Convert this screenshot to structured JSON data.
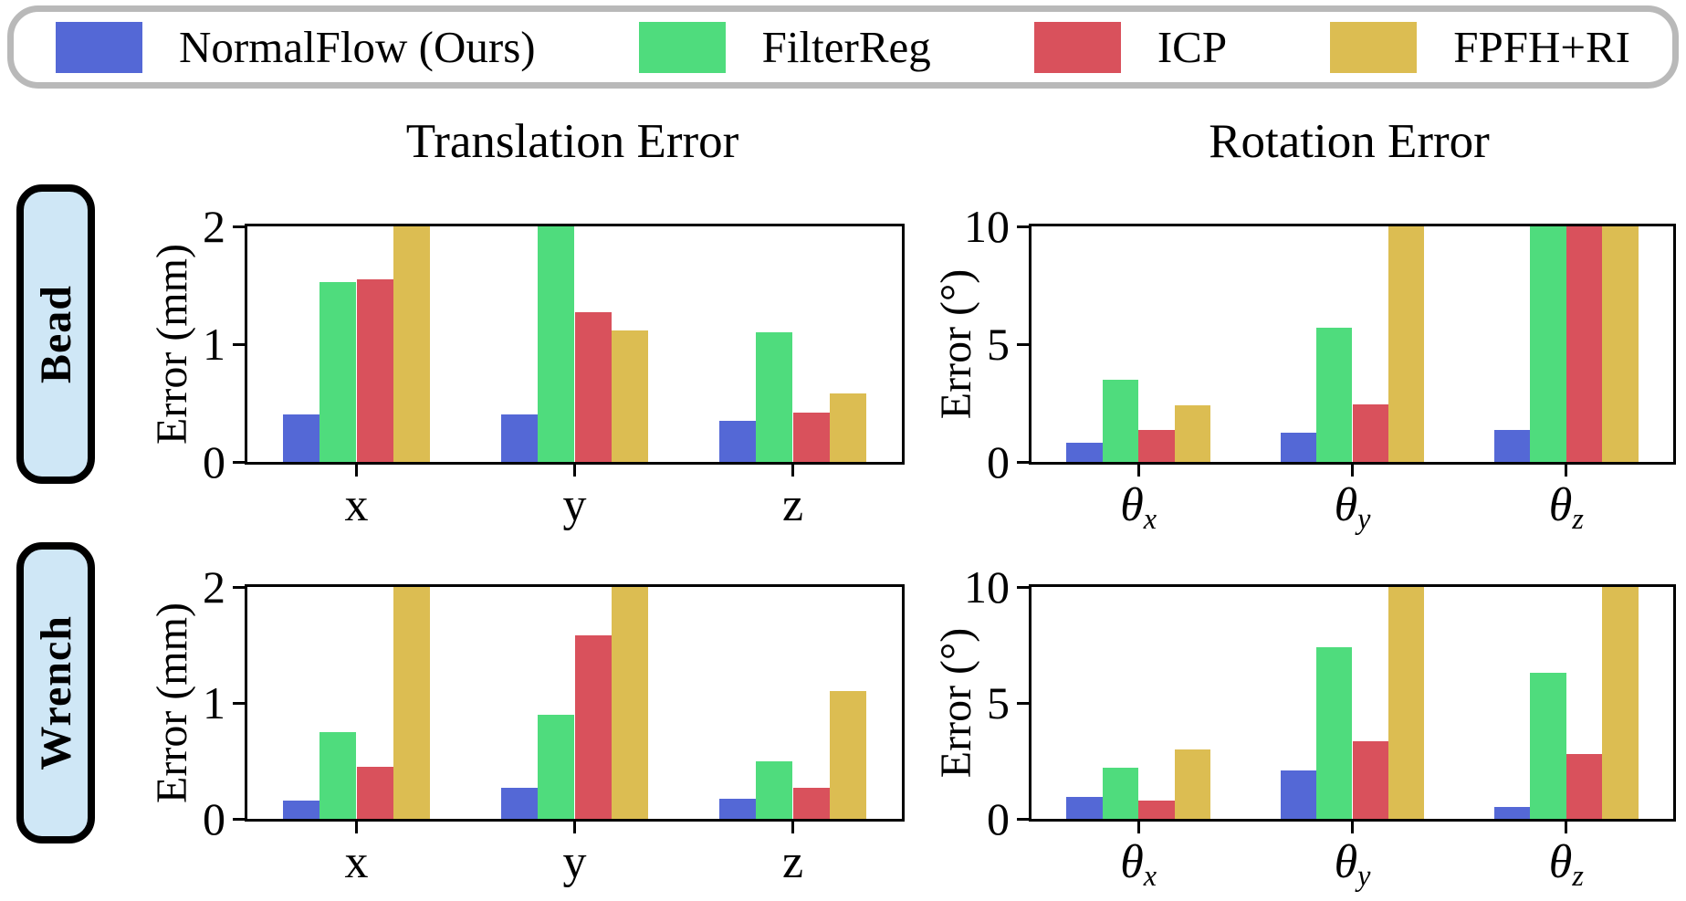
{
  "legend": {
    "items": [
      {
        "label": "NormalFlow (Ours)",
        "color": "#5468d6"
      },
      {
        "label": "FilterReg",
        "color": "#4fdc7d"
      },
      {
        "label": "ICP",
        "color": "#d9515c"
      },
      {
        "label": "FPFH+RI",
        "color": "#dcbd52"
      }
    ],
    "border_color": "#b9b9b9"
  },
  "column_titles": [
    "Translation Error",
    "Rotation Error"
  ],
  "rows": [
    {
      "label": "Bead",
      "background": "#cfe7f6"
    },
    {
      "label": "Wrench",
      "background": "#cfe7f6"
    }
  ],
  "chart_data": [
    {
      "id": "bead-translation",
      "type": "bar",
      "row": "Bead",
      "title": "Translation Error",
      "ylabel": "Error (mm)",
      "ylim": [
        0,
        2
      ],
      "yticks": [
        0,
        1,
        2
      ],
      "categories": [
        "x",
        "y",
        "z"
      ],
      "grid": false,
      "series": [
        {
          "name": "NormalFlow (Ours)",
          "color": "#5468d6",
          "values": [
            0.4,
            0.4,
            0.35
          ],
          "clipped_at_max": [
            false,
            false,
            false
          ]
        },
        {
          "name": "FilterReg",
          "color": "#4fdc7d",
          "values": [
            1.53,
            2.0,
            1.1
          ],
          "clipped_at_max": [
            false,
            true,
            false
          ]
        },
        {
          "name": "ICP",
          "color": "#d9515c",
          "values": [
            1.55,
            1.27,
            0.42
          ],
          "clipped_at_max": [
            false,
            false,
            false
          ]
        },
        {
          "name": "FPFH+RI",
          "color": "#dcbd52",
          "values": [
            2.0,
            1.12,
            0.58
          ],
          "clipped_at_max": [
            true,
            false,
            false
          ]
        }
      ]
    },
    {
      "id": "bead-rotation",
      "type": "bar",
      "row": "Bead",
      "title": "Rotation Error",
      "ylabel": "Error (°)",
      "ylim": [
        0,
        10
      ],
      "yticks": [
        0,
        5,
        10
      ],
      "categories": [
        "θ_x",
        "θ_y",
        "θ_z"
      ],
      "grid": false,
      "series": [
        {
          "name": "NormalFlow (Ours)",
          "color": "#5468d6",
          "values": [
            0.8,
            1.25,
            1.35
          ],
          "clipped_at_max": [
            false,
            false,
            false
          ]
        },
        {
          "name": "FilterReg",
          "color": "#4fdc7d",
          "values": [
            3.5,
            5.7,
            10.0
          ],
          "clipped_at_max": [
            false,
            false,
            true
          ]
        },
        {
          "name": "ICP",
          "color": "#d9515c",
          "values": [
            1.35,
            2.45,
            10.0
          ],
          "clipped_at_max": [
            false,
            false,
            true
          ]
        },
        {
          "name": "FPFH+RI",
          "color": "#dcbd52",
          "values": [
            2.4,
            10.0,
            10.0
          ],
          "clipped_at_max": [
            false,
            true,
            true
          ]
        }
      ]
    },
    {
      "id": "wrench-translation",
      "type": "bar",
      "row": "Wrench",
      "title": "Translation Error",
      "ylabel": "Error (mm)",
      "ylim": [
        0,
        2
      ],
      "yticks": [
        0,
        1,
        2
      ],
      "categories": [
        "x",
        "y",
        "z"
      ],
      "grid": false,
      "series": [
        {
          "name": "NormalFlow (Ours)",
          "color": "#5468d6",
          "values": [
            0.16,
            0.27,
            0.17
          ],
          "clipped_at_max": [
            false,
            false,
            false
          ]
        },
        {
          "name": "FilterReg",
          "color": "#4fdc7d",
          "values": [
            0.75,
            0.9,
            0.5
          ],
          "clipped_at_max": [
            false,
            false,
            false
          ]
        },
        {
          "name": "ICP",
          "color": "#d9515c",
          "values": [
            0.45,
            1.58,
            0.27
          ],
          "clipped_at_max": [
            false,
            false,
            false
          ]
        },
        {
          "name": "FPFH+RI",
          "color": "#dcbd52",
          "values": [
            2.0,
            2.0,
            1.1
          ],
          "clipped_at_max": [
            true,
            true,
            false
          ]
        }
      ]
    },
    {
      "id": "wrench-rotation",
      "type": "bar",
      "row": "Wrench",
      "title": "Rotation Error",
      "ylabel": "Error (°)",
      "ylim": [
        0,
        10
      ],
      "yticks": [
        0,
        5,
        10
      ],
      "categories": [
        "θ_x",
        "θ_y",
        "θ_z"
      ],
      "grid": false,
      "series": [
        {
          "name": "NormalFlow (Ours)",
          "color": "#5468d6",
          "values": [
            0.95,
            2.1,
            0.5
          ],
          "clipped_at_max": [
            false,
            false,
            false
          ]
        },
        {
          "name": "FilterReg",
          "color": "#4fdc7d",
          "values": [
            2.2,
            7.4,
            6.3
          ],
          "clipped_at_max": [
            false,
            false,
            false
          ]
        },
        {
          "name": "ICP",
          "color": "#d9515c",
          "values": [
            0.8,
            3.35,
            2.8
          ],
          "clipped_at_max": [
            false,
            false,
            false
          ]
        },
        {
          "name": "FPFH+RI",
          "color": "#dcbd52",
          "values": [
            3.0,
            10.0,
            10.0
          ],
          "clipped_at_max": [
            false,
            true,
            true
          ]
        }
      ]
    }
  ]
}
